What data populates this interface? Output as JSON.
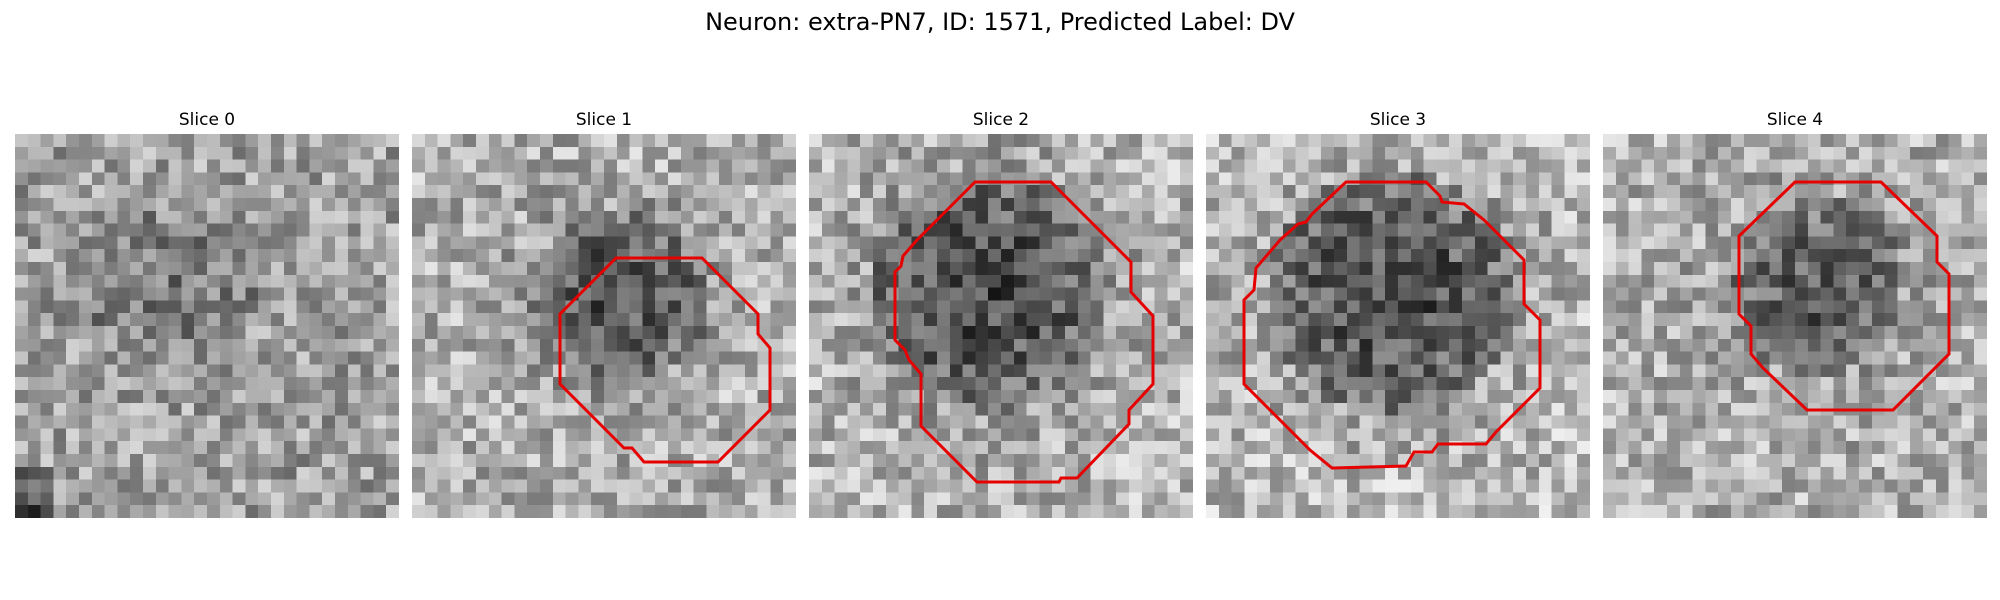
{
  "figure": {
    "title": "Neuron: extra-PN7, ID: 1571, Predicted Label: DV",
    "contour_color": "#e60000"
  },
  "panels": [
    {
      "label": "Slice 0",
      "has_contour": false
    },
    {
      "label": "Slice 1",
      "has_contour": true
    },
    {
      "label": "Slice 2",
      "has_contour": true
    },
    {
      "label": "Slice 3",
      "has_contour": true
    },
    {
      "label": "Slice 4",
      "has_contour": true
    }
  ]
}
